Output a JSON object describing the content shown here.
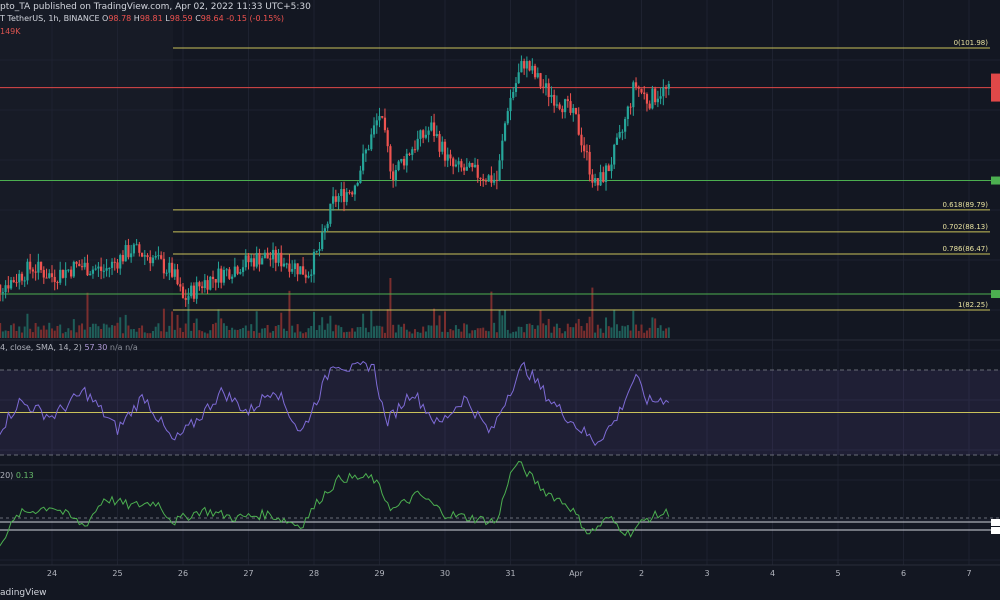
{
  "header": {
    "line1": "pto_TA published on TradingView.com, Apr 02, 2022 11:33 UTC+5:30",
    "line2_prefix": "T TetherUS, 1h, BINANCE",
    "o_label": "O",
    "o_value": "98.78",
    "h_label": "H",
    "h_value": "98.81",
    "l_label": "L",
    "l_value": "98.59",
    "c_label": "C",
    "c_value": "98.64",
    "change": "-0.15 (-0.15%)",
    "volume": "149K"
  },
  "rsi_pane": {
    "label": "4, close, SMA, 14, 2)",
    "value": "57.30",
    "na1": "n/a",
    "na2": "n/a"
  },
  "osc_pane": {
    "label": "20)",
    "value": "0.13"
  },
  "footer": {
    "brand": "adingView"
  },
  "fib_levels": [
    {
      "label": "0(101.98)",
      "value": 101.98
    },
    {
      "label": "0.618(89.79)",
      "value": 89.79
    },
    {
      "label": "0.702(88.13)",
      "value": 88.13
    },
    {
      "label": "0.786(86.47)",
      "value": 86.47
    },
    {
      "label": "1(82.25)",
      "value": 82.25
    }
  ],
  "colors": {
    "background": "#131722",
    "up": "#26a69a",
    "down": "#ef5350",
    "fib": "#c9c15a",
    "resistance": "#e04848",
    "support": "#4caf50",
    "rsi": "#7e57c2",
    "osc": "#4caf50"
  },
  "chart_data": {
    "type": "candlestick",
    "timeframe": "1h",
    "x_tick_labels": [
      "24",
      "25",
      "26",
      "27",
      "28",
      "29",
      "30",
      "31",
      "Apr",
      "2",
      "3",
      "4",
      "5",
      "6",
      "7"
    ],
    "price_axis_range": [
      80.5,
      103.5
    ],
    "horizontal_levels": {
      "resistance_red": 99.0,
      "support_green_upper": 92.0,
      "support_green_lower": 82.7
    },
    "price_path_keypoints": [
      {
        "day": 23.0,
        "price": 83.5
      },
      {
        "day": 23.4,
        "price": 84.5
      },
      {
        "day": 23.7,
        "price": 85.5
      },
      {
        "day": 24.0,
        "price": 84.8
      },
      {
        "day": 24.4,
        "price": 85.6
      },
      {
        "day": 24.8,
        "price": 85.2
      },
      {
        "day": 25.2,
        "price": 86.8
      },
      {
        "day": 25.5,
        "price": 86.3
      },
      {
        "day": 25.85,
        "price": 85.0
      },
      {
        "day": 26.0,
        "price": 83.0
      },
      {
        "day": 26.3,
        "price": 84.3
      },
      {
        "day": 26.8,
        "price": 85.5
      },
      {
        "day": 27.2,
        "price": 86.3
      },
      {
        "day": 27.6,
        "price": 85.9
      },
      {
        "day": 27.9,
        "price": 85.0
      },
      {
        "day": 28.1,
        "price": 87.0
      },
      {
        "day": 28.3,
        "price": 90.5
      },
      {
        "day": 28.6,
        "price": 91.5
      },
      {
        "day": 29.0,
        "price": 97.0
      },
      {
        "day": 29.2,
        "price": 92.5
      },
      {
        "day": 29.5,
        "price": 94.5
      },
      {
        "day": 29.8,
        "price": 96.0
      },
      {
        "day": 30.1,
        "price": 93.0
      },
      {
        "day": 30.5,
        "price": 92.5
      },
      {
        "day": 30.8,
        "price": 92.0
      },
      {
        "day": 30.95,
        "price": 97.5
      },
      {
        "day": 31.2,
        "price": 101.0
      },
      {
        "day": 31.5,
        "price": 99.0
      },
      {
        "day": 31.8,
        "price": 97.8
      },
      {
        "day": 32.0,
        "price": 96.5
      },
      {
        "day": 32.3,
        "price": 91.5
      },
      {
        "day": 32.5,
        "price": 93.0
      },
      {
        "day": 32.7,
        "price": 95.5
      },
      {
        "day": 32.9,
        "price": 99.3
      },
      {
        "day": 33.1,
        "price": 98.0
      },
      {
        "day": 33.3,
        "price": 98.8
      },
      {
        "day": 33.45,
        "price": 98.6
      }
    ],
    "volume_note": "volume bars along bottom of price pane",
    "rsi": {
      "length": 14,
      "value": 57.3,
      "bands": [
        30,
        50,
        70
      ],
      "path_keypoints": [
        {
          "day": 23.0,
          "rsi": 33
        },
        {
          "day": 23.5,
          "rsi": 55
        },
        {
          "day": 24.0,
          "rsi": 48
        },
        {
          "day": 24.5,
          "rsi": 60
        },
        {
          "day": 25.0,
          "rsi": 42
        },
        {
          "day": 25.4,
          "rsi": 58
        },
        {
          "day": 25.85,
          "rsi": 36
        },
        {
          "day": 26.2,
          "rsi": 46
        },
        {
          "day": 26.6,
          "rsi": 60
        },
        {
          "day": 27.0,
          "rsi": 50
        },
        {
          "day": 27.4,
          "rsi": 62
        },
        {
          "day": 27.8,
          "rsi": 40
        },
        {
          "day": 28.1,
          "rsi": 60
        },
        {
          "day": 28.3,
          "rsi": 74
        },
        {
          "day": 28.6,
          "rsi": 70
        },
        {
          "day": 28.9,
          "rsi": 73
        },
        {
          "day": 29.1,
          "rsi": 45
        },
        {
          "day": 29.5,
          "rsi": 60
        },
        {
          "day": 29.9,
          "rsi": 44
        },
        {
          "day": 30.3,
          "rsi": 57
        },
        {
          "day": 30.7,
          "rsi": 40
        },
        {
          "day": 30.95,
          "rsi": 58
        },
        {
          "day": 31.2,
          "rsi": 72
        },
        {
          "day": 31.6,
          "rsi": 56
        },
        {
          "day": 32.0,
          "rsi": 44
        },
        {
          "day": 32.3,
          "rsi": 36
        },
        {
          "day": 32.6,
          "rsi": 46
        },
        {
          "day": 32.9,
          "rsi": 67
        },
        {
          "day": 33.1,
          "rsi": 55
        },
        {
          "day": 33.45,
          "rsi": 57
        }
      ]
    },
    "oscillator": {
      "value": 0.13,
      "path_keypoints": [
        {
          "day": 23.0,
          "v": -0.5
        },
        {
          "day": 23.5,
          "v": 0.1
        },
        {
          "day": 24.0,
          "v": 0.2
        },
        {
          "day": 24.5,
          "v": -0.05
        },
        {
          "day": 24.8,
          "v": 0.3
        },
        {
          "day": 25.2,
          "v": 0.2
        },
        {
          "day": 25.6,
          "v": 0.25
        },
        {
          "day": 25.85,
          "v": 0.0
        },
        {
          "day": 26.3,
          "v": 0.15
        },
        {
          "day": 26.8,
          "v": 0.05
        },
        {
          "day": 27.3,
          "v": 0.1
        },
        {
          "day": 27.8,
          "v": -0.05
        },
        {
          "day": 28.1,
          "v": 0.3
        },
        {
          "day": 28.4,
          "v": 0.55
        },
        {
          "day": 28.9,
          "v": 0.55
        },
        {
          "day": 29.2,
          "v": 0.15
        },
        {
          "day": 29.6,
          "v": 0.35
        },
        {
          "day": 30.0,
          "v": 0.1
        },
        {
          "day": 30.4,
          "v": 0.05
        },
        {
          "day": 30.8,
          "v": 0.0
        },
        {
          "day": 30.95,
          "v": 0.5
        },
        {
          "day": 31.1,
          "v": 0.75
        },
        {
          "day": 31.5,
          "v": 0.4
        },
        {
          "day": 31.9,
          "v": 0.2
        },
        {
          "day": 32.2,
          "v": -0.15
        },
        {
          "day": 32.5,
          "v": 0.05
        },
        {
          "day": 32.8,
          "v": -0.15
        },
        {
          "day": 33.1,
          "v": 0.05
        },
        {
          "day": 33.45,
          "v": 0.13
        }
      ],
      "levels": [
        0.0,
        -0.1
      ]
    }
  }
}
